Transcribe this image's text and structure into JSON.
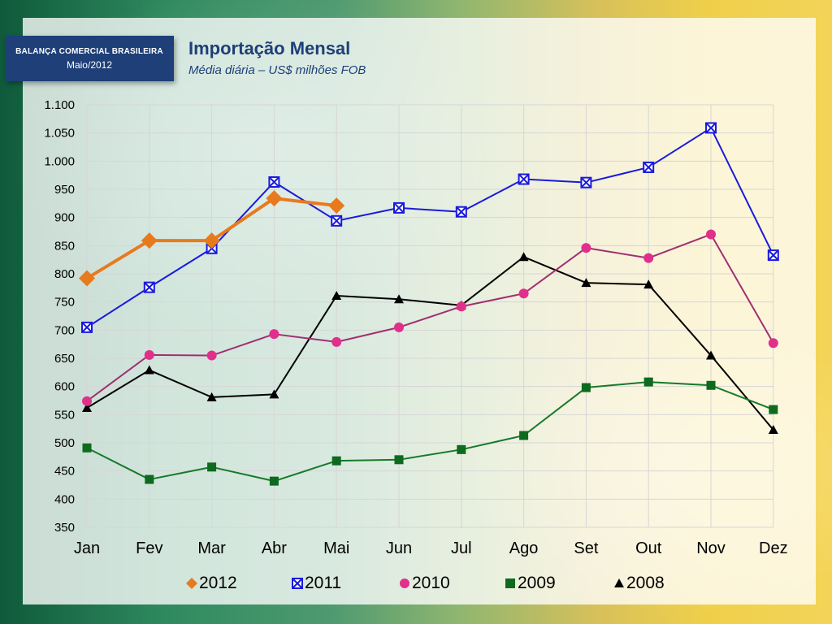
{
  "header": {
    "badge_line1": "BALANÇA COMERCIAL BRASILEIRA",
    "badge_line2": "Maio/2012",
    "title": "Importação Mensal",
    "subtitle": "Média diária – US$ milhões FOB"
  },
  "colors": {
    "badge": "#1e3f78",
    "title": "#1e3f78"
  },
  "chart_data": {
    "type": "line",
    "categories": [
      "Jan",
      "Fev",
      "Mar",
      "Abr",
      "Mai",
      "Jun",
      "Jul",
      "Ago",
      "Set",
      "Out",
      "Nov",
      "Dez"
    ],
    "ylim": [
      350,
      1100
    ],
    "yticks": [
      350,
      400,
      450,
      500,
      550,
      600,
      650,
      700,
      750,
      800,
      850,
      900,
      950,
      1000,
      1050,
      1100
    ],
    "ytick_labels": [
      "350",
      "400",
      "450",
      "500",
      "550",
      "600",
      "650",
      "700",
      "750",
      "800",
      "850",
      "900",
      "950",
      "1.000",
      "1.050",
      "1.100"
    ],
    "grid": true,
    "legend_position": "bottom",
    "series": [
      {
        "name": "2012",
        "color": "#e87a1e",
        "marker": "diamond",
        "values": [
          792,
          859,
          859,
          934,
          921,
          null,
          null,
          null,
          null,
          null,
          null,
          null
        ]
      },
      {
        "name": "2011",
        "color": "#1a1adc",
        "marker": "square-x",
        "values": [
          705,
          776,
          845,
          963,
          894,
          917,
          910,
          968,
          962,
          989,
          1059,
          833
        ]
      },
      {
        "name": "2010",
        "color": "#a03070",
        "marker_color": "#e0308c",
        "marker": "circle",
        "values": [
          574,
          656,
          655,
          693,
          679,
          705,
          742,
          765,
          846,
          828,
          870,
          677
        ]
      },
      {
        "name": "2009",
        "color": "#167a2a",
        "marker_color": "#0d6a1e",
        "marker": "square",
        "values": [
          491,
          435,
          457,
          432,
          468,
          470,
          488,
          513,
          598,
          608,
          602,
          559
        ]
      },
      {
        "name": "2008",
        "color": "#000000",
        "marker": "triangle",
        "values": [
          562,
          629,
          581,
          586,
          761,
          755,
          744,
          830,
          784,
          781,
          655,
          523
        ]
      }
    ]
  }
}
